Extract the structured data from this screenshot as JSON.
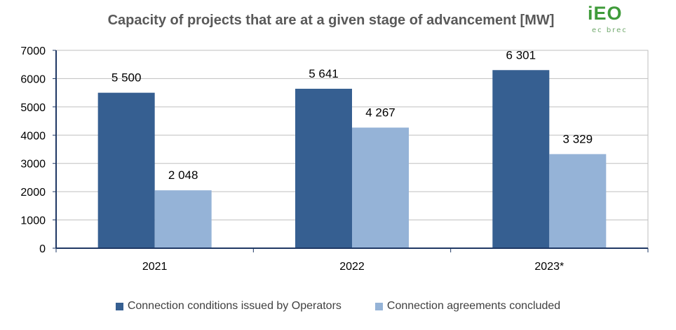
{
  "logo": {
    "word": "iEO",
    "sub": "ec brec"
  },
  "chart_data": {
    "type": "bar",
    "title": "Capacity of projects that are at a given stage of advancement [MW]",
    "xlabel": "",
    "ylabel": "",
    "categories": [
      "2021",
      "2022",
      "2023*"
    ],
    "series": [
      {
        "name": "Connection conditions issued by Operators",
        "values": [
          5500,
          5641,
          6301
        ],
        "labels": [
          "5 500",
          "5 641",
          "6 301"
        ],
        "color": "#365f91"
      },
      {
        "name": "Connection agreements concluded",
        "values": [
          2048,
          4267,
          3329
        ],
        "labels": [
          "2 048",
          "4 267",
          "3 329"
        ],
        "color": "#95b3d7"
      }
    ],
    "ylim": [
      0,
      7000
    ],
    "yticks": [
      0,
      1000,
      2000,
      3000,
      4000,
      5000,
      6000,
      7000
    ],
    "grid": true,
    "legend_position": "bottom"
  }
}
